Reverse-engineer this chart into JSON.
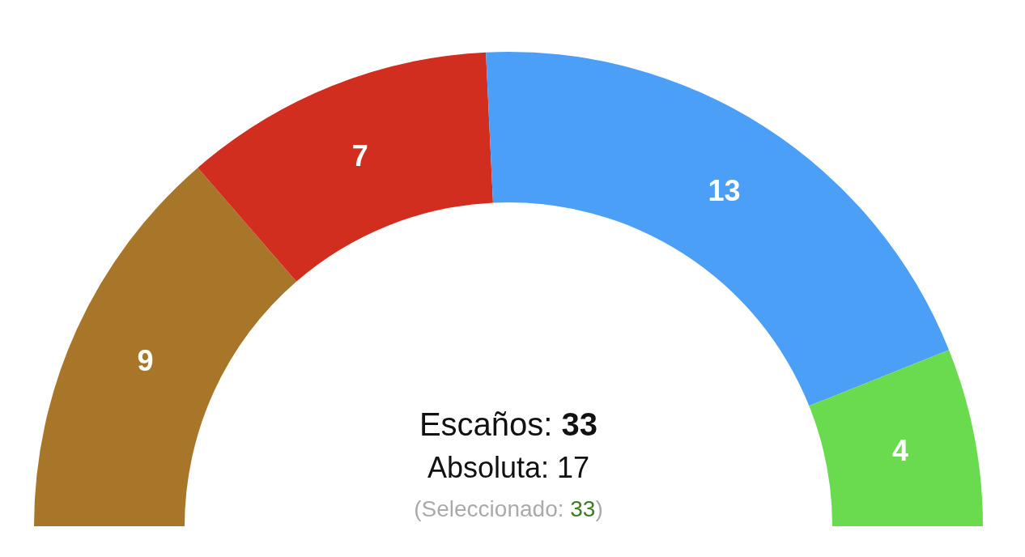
{
  "chart_data": {
    "type": "donut",
    "categories": [
      null,
      null,
      null,
      null
    ],
    "values": [
      9,
      7,
      13,
      4
    ],
    "colors": [
      "#a87628",
      "#d12e20",
      "#4b9ff7",
      "#6adb4e"
    ],
    "data_labels": true,
    "annotations": [
      "Escaños: 33",
      "Absoluta: 17",
      "(Seleccionado: 33)"
    ]
  }
}
